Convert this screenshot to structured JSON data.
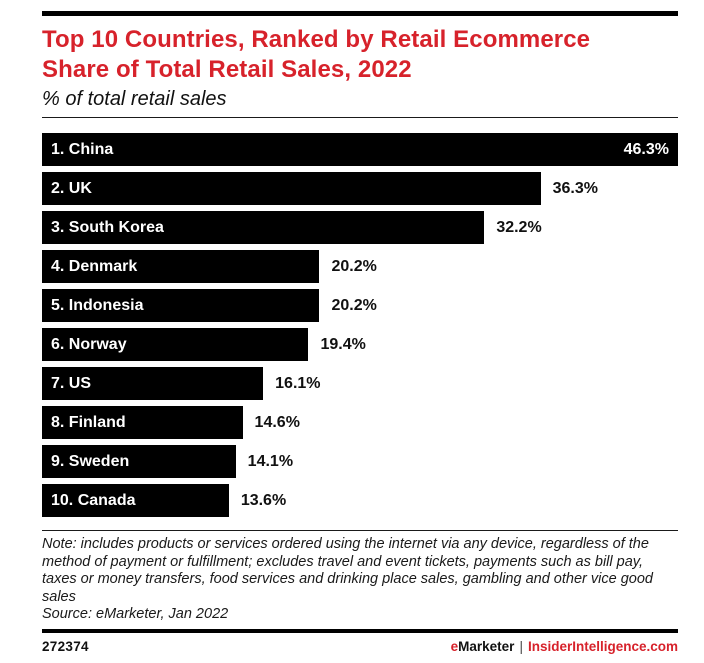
{
  "colors": {
    "accent_red": "#d7222b",
    "bar": "#000000"
  },
  "header": {
    "title_line1": "Top 10 Countries, Ranked by Retail Ecommerce",
    "title_line2": "Share of Total Retail Sales, 2022",
    "subtitle": "% of total retail sales"
  },
  "chart_data": {
    "type": "bar",
    "orientation": "horizontal",
    "title": "Top 10 Countries, Ranked by Retail Ecommerce Share of Total Retail Sales, 2022",
    "subtitle": "% of total retail sales",
    "categories": [
      "1. China",
      "2. UK",
      "3. South Korea",
      "4. Denmark",
      "5. Indonesia",
      "6. Norway",
      "7. US",
      "8. Finland",
      "9. Sweden",
      "10. Canada"
    ],
    "values": [
      46.3,
      36.3,
      32.2,
      20.2,
      20.2,
      19.4,
      16.1,
      14.6,
      14.1,
      13.6
    ],
    "value_labels": [
      "46.3%",
      "36.3%",
      "32.2%",
      "20.2%",
      "20.2%",
      "19.4%",
      "16.1%",
      "14.6%",
      "14.1%",
      "13.6%"
    ],
    "xlim": [
      0,
      46.3
    ],
    "bar_color": "#000000",
    "grid": false,
    "legend": false,
    "max_value_label_inside": true
  },
  "note": {
    "text": "Note: includes products or services ordered using the internet via any device, regardless of the method of payment or fulfillment; excludes travel and event tickets, payments such as bill pay, taxes or money transfers, food services and drinking place sales, gambling and other vice good sales",
    "source": "Source: eMarketer, Jan 2022"
  },
  "footer": {
    "chart_id": "272374",
    "brand_e": "e",
    "brand_rest": "Marketer",
    "separator": "|",
    "site": "InsiderIntelligence.com"
  }
}
